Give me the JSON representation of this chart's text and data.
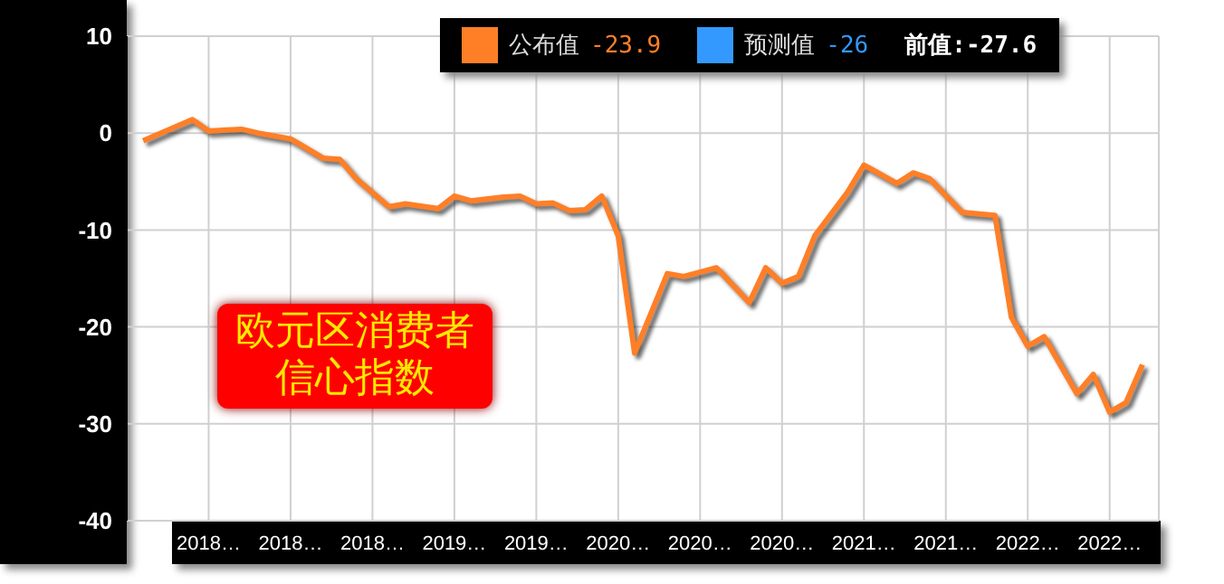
{
  "chart_data": {
    "type": "line",
    "title": "欧元区消费者信心指数",
    "x": [
      "2017-09",
      "2017-12",
      "2018-01",
      "2018-03",
      "2018-04",
      "2018-06",
      "2018-08",
      "2018-09",
      "2018-10",
      "2018-12",
      "2019-01",
      "2019-03",
      "2019-04",
      "2019-05",
      "2019-07",
      "2019-08",
      "2019-09",
      "2019-10",
      "2019-11",
      "2019-12",
      "2020-01",
      "2020-02",
      "2020-03",
      "2020-05",
      "2020-06",
      "2020-08",
      "2020-10",
      "2020-11",
      "2020-12",
      "2021-01",
      "2021-02",
      "2021-04",
      "2021-05",
      "2021-07",
      "2021-08",
      "2021-09",
      "2021-11",
      "2022-01",
      "2022-02",
      "2022-03",
      "2022-04",
      "2022-06",
      "2022-07",
      "2022-08",
      "2022-09",
      "2022-10"
    ],
    "series": [
      {
        "name": "公布值",
        "color": "#ff7f27",
        "values": [
          -0.8,
          1.4,
          0.2,
          0.4,
          0,
          -0.6,
          -2.6,
          -2.7,
          -4.7,
          -7.6,
          -7.3,
          -7.8,
          -6.5,
          -7.0,
          -6.6,
          -6.5,
          -7.3,
          -7.2,
          -8.0,
          -7.9,
          -6.5,
          -10.6,
          -22.7,
          -14.5,
          -14.8,
          -13.9,
          -17.5,
          -13.9,
          -15.5,
          -14.8,
          -10.6,
          -6.1,
          -3.3,
          -5.2,
          -4.1,
          -4.7,
          -8.2,
          -8.5,
          -19.0,
          -22.0,
          -21.0,
          -26.9,
          -24.9,
          -28.8,
          -27.8,
          -23.9
        ]
      }
    ],
    "annotations": [
      "-23.9",
      "预测值",
      "-26",
      "前值:-27.6"
    ],
    "xlim": [
      "2017-08",
      "2022-11"
    ],
    "xticks": [
      {
        "value": "2018-01",
        "label": "2018…"
      },
      {
        "value": "2018-06",
        "label": "2018…"
      },
      {
        "value": "2018-11",
        "label": "2018…"
      },
      {
        "value": "2019-04",
        "label": "2019…"
      },
      {
        "value": "2019-09",
        "label": "2019…"
      },
      {
        "value": "2020-02",
        "label": "2020…"
      },
      {
        "value": "2020-07",
        "label": "2020…"
      },
      {
        "value": "2020-12",
        "label": "2020…"
      },
      {
        "value": "2021-05",
        "label": "2021…"
      },
      {
        "value": "2021-10",
        "label": "2021…"
      },
      {
        "value": "2022-03",
        "label": "2022…"
      },
      {
        "value": "2022-08",
        "label": "2022…"
      }
    ],
    "ylim": [
      -40,
      10
    ],
    "yticks": [
      -40,
      -30,
      -20,
      -10,
      0,
      10
    ],
    "grid": true,
    "legend": "top",
    "marker": "none",
    "line_style": "solid"
  }
}
